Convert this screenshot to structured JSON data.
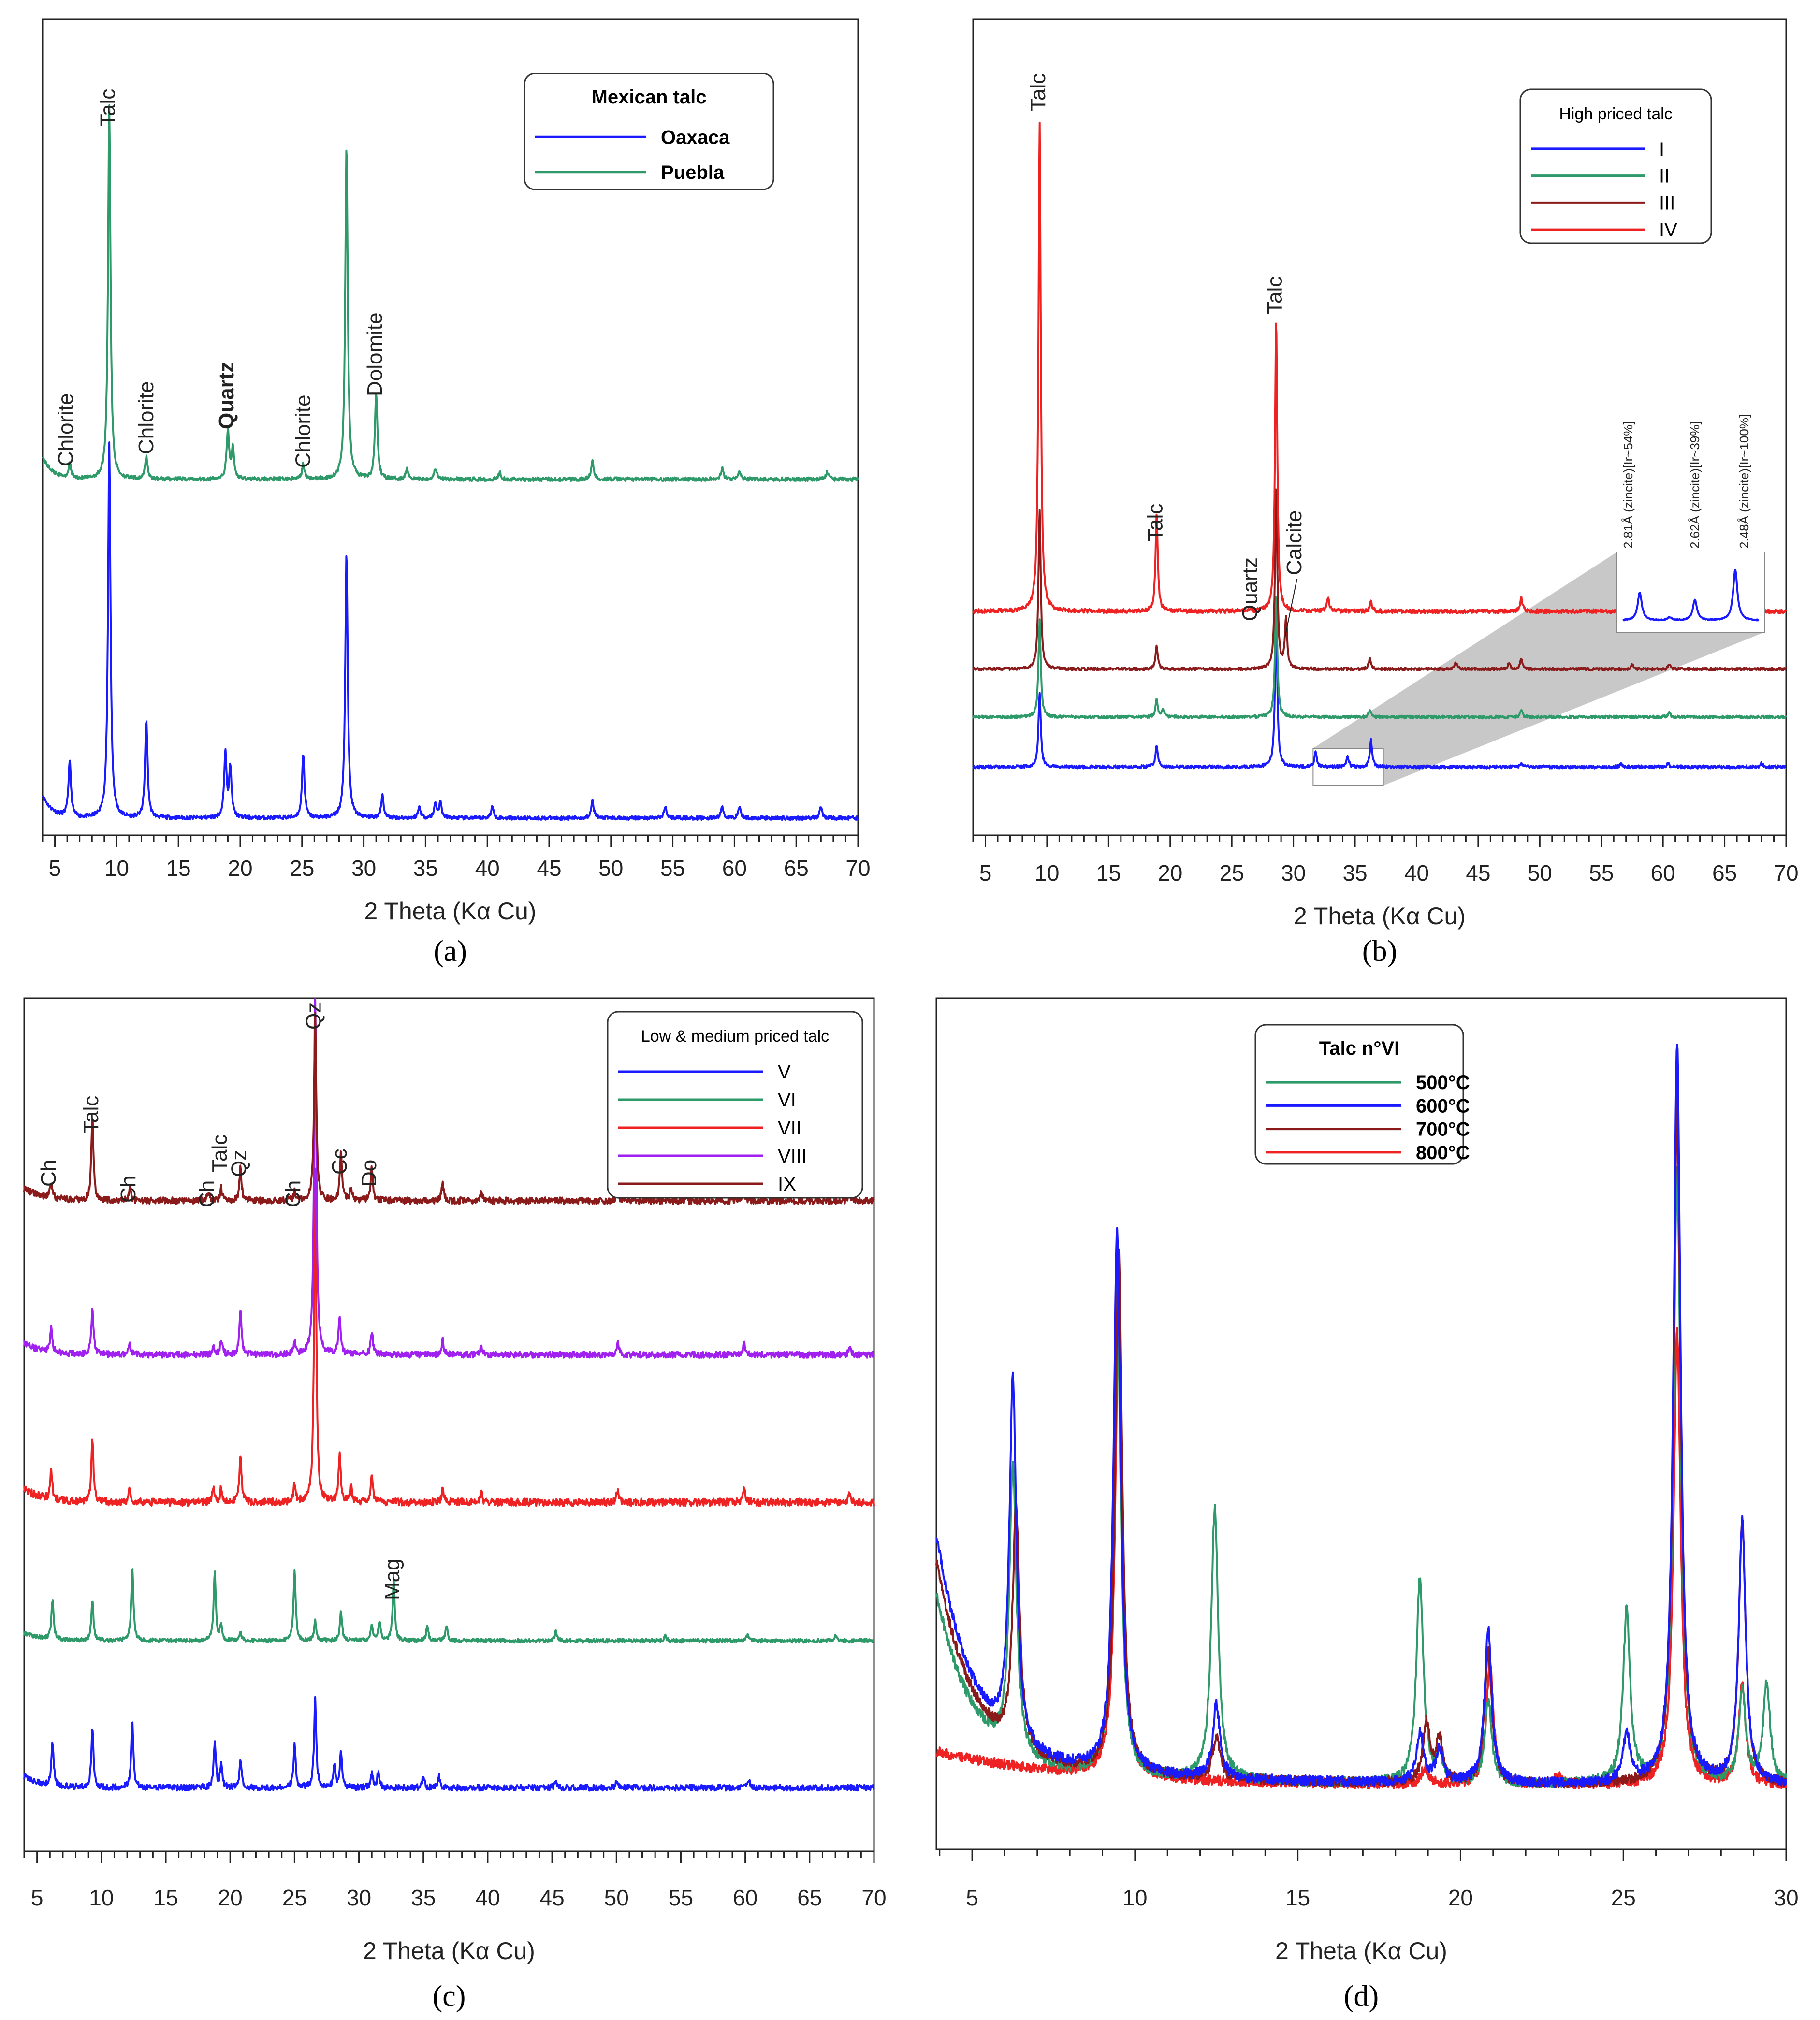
{
  "chart_data": [
    {
      "type": "line",
      "id": "a",
      "panel_label": "(a)",
      "xlabel": "2 Theta (Kα Cu)",
      "xlim": [
        4,
        70
      ],
      "xticks": [
        5,
        10,
        15,
        20,
        25,
        30,
        35,
        40,
        45,
        50,
        55,
        60,
        65,
        70
      ],
      "legend": {
        "title": "Mexican talc",
        "title_bold": true,
        "bold_entries": true,
        "placement": "top-right"
      },
      "colors": {
        "Oaxaca": "#1a1aff",
        "Puebla": "#2e9a6a"
      },
      "annotations": [
        {
          "text": "Chlorite",
          "x": 6.0,
          "bold": false
        },
        {
          "text": "Talc",
          "x": 9.4,
          "bold": false
        },
        {
          "text": "Chlorite",
          "x": 12.5,
          "bold": false
        },
        {
          "text": "Quartz",
          "x": 19.0,
          "bold": true
        },
        {
          "text": "Chlorite",
          "x": 25.2,
          "bold": false
        },
        {
          "text": "Dolomite",
          "x": 31.0,
          "bold": false
        }
      ],
      "series": [
        {
          "name": "Oaxaca",
          "baseline": 0.08,
          "peaks": [
            [
              6.2,
              0.15
            ],
            [
              9.4,
              1.0
            ],
            [
              12.4,
              0.26
            ],
            [
              18.8,
              0.17
            ],
            [
              19.2,
              0.13
            ],
            [
              25.1,
              0.17
            ],
            [
              28.6,
              0.7
            ],
            [
              31.5,
              0.06
            ],
            [
              34.5,
              0.03
            ],
            [
              35.8,
              0.04
            ],
            [
              36.2,
              0.04
            ],
            [
              40.4,
              0.03
            ],
            [
              48.5,
              0.05
            ],
            [
              54.4,
              0.03
            ],
            [
              59.0,
              0.03
            ],
            [
              60.4,
              0.03
            ],
            [
              67.0,
              0.03
            ]
          ]
        },
        {
          "name": "Puebla",
          "baseline": 0.08,
          "peaks": [
            [
              6.2,
              0.04
            ],
            [
              9.4,
              1.0
            ],
            [
              12.4,
              0.06
            ],
            [
              19.0,
              0.13
            ],
            [
              19.4,
              0.08
            ],
            [
              25.1,
              0.04
            ],
            [
              28.6,
              0.89
            ],
            [
              31.0,
              0.23
            ],
            [
              33.5,
              0.03
            ],
            [
              35.8,
              0.03
            ],
            [
              41.0,
              0.02
            ],
            [
              48.5,
              0.05
            ],
            [
              59.0,
              0.03
            ],
            [
              60.4,
              0.02
            ],
            [
              67.5,
              0.02
            ]
          ]
        }
      ]
    },
    {
      "type": "line",
      "id": "b",
      "panel_label": "(b)",
      "xlabel": "2 Theta (Kα Cu)",
      "xlim": [
        4,
        70
      ],
      "xticks": [
        5,
        10,
        15,
        20,
        25,
        30,
        35,
        40,
        45,
        50,
        55,
        60,
        65,
        70
      ],
      "legend": {
        "title": "High priced talc",
        "title_bold": false,
        "bold_entries": false,
        "placement": "top-right"
      },
      "colors": {
        "I": "#1a1aff",
        "II": "#2e9a6a",
        "III": "#8b1a1a",
        "IV": "#ee2222"
      },
      "annotations": [
        {
          "text": "Talc",
          "x": 9.4
        },
        {
          "text": "Talc",
          "x": 18.9
        },
        {
          "text": "Quartz",
          "x": 26.6
        },
        {
          "text": "Talc",
          "x": 28.6
        },
        {
          "text": "Calcite",
          "x": 29.4
        }
      ],
      "inset_labels": [
        "2.81Å (zincite)[Ir~54%]",
        "2.62Å (zincite)[Ir~39%]",
        "2.48Å (zincite)[Ir~100%]"
      ],
      "series": [
        {
          "name": "I",
          "baseline": 0.03,
          "peaks": [
            [
              9.4,
              0.2
            ],
            [
              18.9,
              0.06
            ],
            [
              28.6,
              0.4
            ],
            [
              31.8,
              0.04
            ],
            [
              34.4,
              0.03
            ],
            [
              36.3,
              0.07
            ],
            [
              48.5,
              0.01
            ],
            [
              56.6,
              0.01
            ],
            [
              60.4,
              0.01
            ],
            [
              68.0,
              0.01
            ]
          ]
        },
        {
          "name": "II",
          "baseline": 0.03,
          "peaks": [
            [
              9.4,
              0.28
            ],
            [
              18.9,
              0.05
            ],
            [
              19.4,
              0.02
            ],
            [
              28.6,
              0.35
            ],
            [
              36.2,
              0.02
            ],
            [
              48.5,
              0.02
            ],
            [
              60.5,
              0.015
            ]
          ]
        },
        {
          "name": "III",
          "baseline": 0.03,
          "peaks": [
            [
              9.4,
              0.48
            ],
            [
              18.9,
              0.07
            ],
            [
              28.6,
              0.55
            ],
            [
              29.4,
              0.15
            ],
            [
              36.2,
              0.03
            ],
            [
              43.2,
              0.02
            ],
            [
              47.5,
              0.02
            ],
            [
              48.5,
              0.03
            ],
            [
              57.5,
              0.015
            ],
            [
              60.5,
              0.015
            ]
          ]
        },
        {
          "name": "IV",
          "baseline": 0.03,
          "peaks": [
            [
              9.4,
              1.0
            ],
            [
              18.9,
              0.2
            ],
            [
              28.6,
              0.6
            ],
            [
              32.8,
              0.03
            ],
            [
              36.3,
              0.02
            ],
            [
              48.5,
              0.03
            ],
            [
              57.0,
              0.015
            ]
          ]
        }
      ]
    },
    {
      "type": "line",
      "id": "c",
      "panel_label": "(c)",
      "xlabel": "2 Theta (Kα Cu)",
      "xlim": [
        4,
        70
      ],
      "xticks": [
        5,
        10,
        15,
        20,
        25,
        30,
        35,
        40,
        45,
        50,
        55,
        60,
        65,
        70
      ],
      "legend": {
        "title": "Low & medium priced talc",
        "title_bold": false,
        "bold_entries": false,
        "placement": "top-right"
      },
      "colors": {
        "V": "#1a1aff",
        "VI": "#2e9a6a",
        "VII": "#ee2222",
        "VIII": "#a020f0",
        "IX": "#8b1a1a"
      },
      "annotations": [
        {
          "text": "Ch",
          "x": 6.0
        },
        {
          "text": "Talc",
          "x": 9.3
        },
        {
          "text": "Ch",
          "x": 12.2
        },
        {
          "text": "Ch",
          "x": 18.3
        },
        {
          "text": "Talc",
          "x": 19.3
        },
        {
          "text": "Qz",
          "x": 20.8
        },
        {
          "text": "Ch",
          "x": 25.0
        },
        {
          "text": "Qz",
          "x": 26.6
        },
        {
          "text": "Cc",
          "x": 28.6
        },
        {
          "text": "Do",
          "x": 30.9
        },
        {
          "text": "Mag",
          "x": 32.7
        }
      ],
      "series": [
        {
          "name": "V",
          "baseline": 0.03,
          "peaks": [
            [
              6.2,
              0.06
            ],
            [
              9.3,
              0.08
            ],
            [
              12.4,
              0.09
            ],
            [
              18.8,
              0.06
            ],
            [
              19.3,
              0.03
            ],
            [
              20.8,
              0.04
            ],
            [
              25.0,
              0.06
            ],
            [
              26.6,
              0.12
            ],
            [
              28.1,
              0.03
            ],
            [
              28.6,
              0.05
            ],
            [
              31.0,
              0.02
            ],
            [
              31.5,
              0.02
            ],
            [
              35.0,
              0.015
            ],
            [
              36.2,
              0.015
            ],
            [
              45.3,
              0.01
            ],
            [
              50.0,
              0.01
            ],
            [
              60.3,
              0.01
            ]
          ]
        },
        {
          "name": "VI",
          "baseline": 0.03,
          "peaks": [
            [
              6.2,
              0.08
            ],
            [
              9.3,
              0.08
            ],
            [
              12.4,
              0.15
            ],
            [
              18.8,
              0.14
            ],
            [
              19.3,
              0.03
            ],
            [
              20.8,
              0.015
            ],
            [
              25.0,
              0.14
            ],
            [
              26.6,
              0.04
            ],
            [
              28.6,
              0.06
            ],
            [
              31.0,
              0.03
            ],
            [
              31.6,
              0.04
            ],
            [
              32.7,
              0.12
            ],
            [
              35.3,
              0.03
            ],
            [
              36.8,
              0.03
            ],
            [
              45.3,
              0.02
            ],
            [
              53.8,
              0.01
            ],
            [
              60.2,
              0.015
            ],
            [
              67.0,
              0.01
            ]
          ]
        },
        {
          "name": "VII",
          "baseline": 0.03,
          "peaks": [
            [
              6.1,
              0.03
            ],
            [
              9.3,
              0.07
            ],
            [
              12.2,
              0.015
            ],
            [
              18.7,
              0.015
            ],
            [
              19.3,
              0.015
            ],
            [
              20.8,
              0.05
            ],
            [
              25.0,
              0.02
            ],
            [
              26.6,
              0.36
            ],
            [
              28.5,
              0.05
            ],
            [
              29.4,
              0.015
            ],
            [
              31.0,
              0.03
            ],
            [
              36.5,
              0.015
            ],
            [
              39.5,
              0.01
            ],
            [
              50.1,
              0.015
            ],
            [
              59.9,
              0.015
            ],
            [
              68.1,
              0.01
            ]
          ]
        },
        {
          "name": "VIII",
          "baseline": 0.03,
          "peaks": [
            [
              6.1,
              0.03
            ],
            [
              9.3,
              0.06
            ],
            [
              12.2,
              0.015
            ],
            [
              18.7,
              0.01
            ],
            [
              19.3,
              0.02
            ],
            [
              20.8,
              0.06
            ],
            [
              25.0,
              0.015
            ],
            [
              26.6,
              0.5
            ],
            [
              28.5,
              0.05
            ],
            [
              31.0,
              0.03
            ],
            [
              36.5,
              0.02
            ],
            [
              39.5,
              0.01
            ],
            [
              50.1,
              0.015
            ],
            [
              59.9,
              0.015
            ],
            [
              68.1,
              0.01
            ]
          ]
        },
        {
          "name": "IX",
          "baseline": 0.03,
          "peaks": [
            [
              6.1,
              0.02
            ],
            [
              9.3,
              0.1
            ],
            [
              12.2,
              0.015
            ],
            [
              18.3,
              0.01
            ],
            [
              19.3,
              0.015
            ],
            [
              20.8,
              0.04
            ],
            [
              25.0,
              0.01
            ],
            [
              26.6,
              0.23
            ],
            [
              28.6,
              0.06
            ],
            [
              29.4,
              0.015
            ],
            [
              31.0,
              0.04
            ],
            [
              36.5,
              0.02
            ],
            [
              39.5,
              0.01
            ],
            [
              50.1,
              0.01
            ],
            [
              59.9,
              0.01
            ],
            [
              68.1,
              0.01
            ]
          ]
        }
      ]
    },
    {
      "type": "line",
      "id": "d",
      "panel_label": "(d)",
      "xlabel": "2 Theta (Kα Cu)",
      "xlim": [
        3.9,
        30
      ],
      "xticks": [
        5,
        10,
        15,
        20,
        25,
        30
      ],
      "legend": {
        "title": "Talc n°VI",
        "title_bold": true,
        "bold_entries": true,
        "placement": "top-left"
      },
      "colors": {
        "500°C": "#2e9a6a",
        "600°C": "#1a1aff",
        "700°C": "#8b1a1a",
        "800°C": "#ee2222"
      },
      "series": [
        {
          "name": "500°C",
          "bg": [
            0.27,
            0.14,
            0.06
          ],
          "peaks": [
            [
              6.25,
              0.35
            ],
            [
              9.45,
              0.6
            ],
            [
              12.45,
              0.33
            ],
            [
              18.75,
              0.25
            ],
            [
              19.35,
              0.03
            ],
            [
              20.85,
              0.1
            ],
            [
              25.1,
              0.21
            ],
            [
              26.65,
              0.75
            ],
            [
              28.65,
              0.11
            ],
            [
              29.4,
              0.12
            ]
          ]
        },
        {
          "name": "600°C",
          "bg": [
            0.33,
            0.18,
            0.06
          ],
          "peaks": [
            [
              6.25,
              0.44
            ],
            [
              9.45,
              0.66
            ],
            [
              12.5,
              0.09
            ],
            [
              18.75,
              0.06
            ],
            [
              19.35,
              0.04
            ],
            [
              20.85,
              0.19
            ],
            [
              25.1,
              0.06
            ],
            [
              26.65,
              0.9
            ],
            [
              28.65,
              0.32
            ]
          ]
        },
        {
          "name": "700°C",
          "bg": [
            0.3,
            0.17,
            0.06
          ],
          "peaks": [
            [
              6.35,
              0.29
            ],
            [
              9.5,
              0.64
            ],
            [
              12.5,
              0.05
            ],
            [
              18.95,
              0.07
            ],
            [
              19.35,
              0.05
            ],
            [
              20.85,
              0.16
            ],
            [
              26.65,
              0.83
            ],
            [
              28.65,
              0.32
            ]
          ]
        },
        {
          "name": "800°C",
          "bg": [
            0.11,
            0.03,
            0.06
          ],
          "peaks": [
            [
              9.5,
              0.55
            ],
            [
              18.9,
              0.02
            ],
            [
              20.9,
              0.15
            ],
            [
              23.0,
              0.01
            ],
            [
              26.65,
              0.55
            ],
            [
              28.65,
              0.12
            ]
          ]
        }
      ]
    }
  ]
}
